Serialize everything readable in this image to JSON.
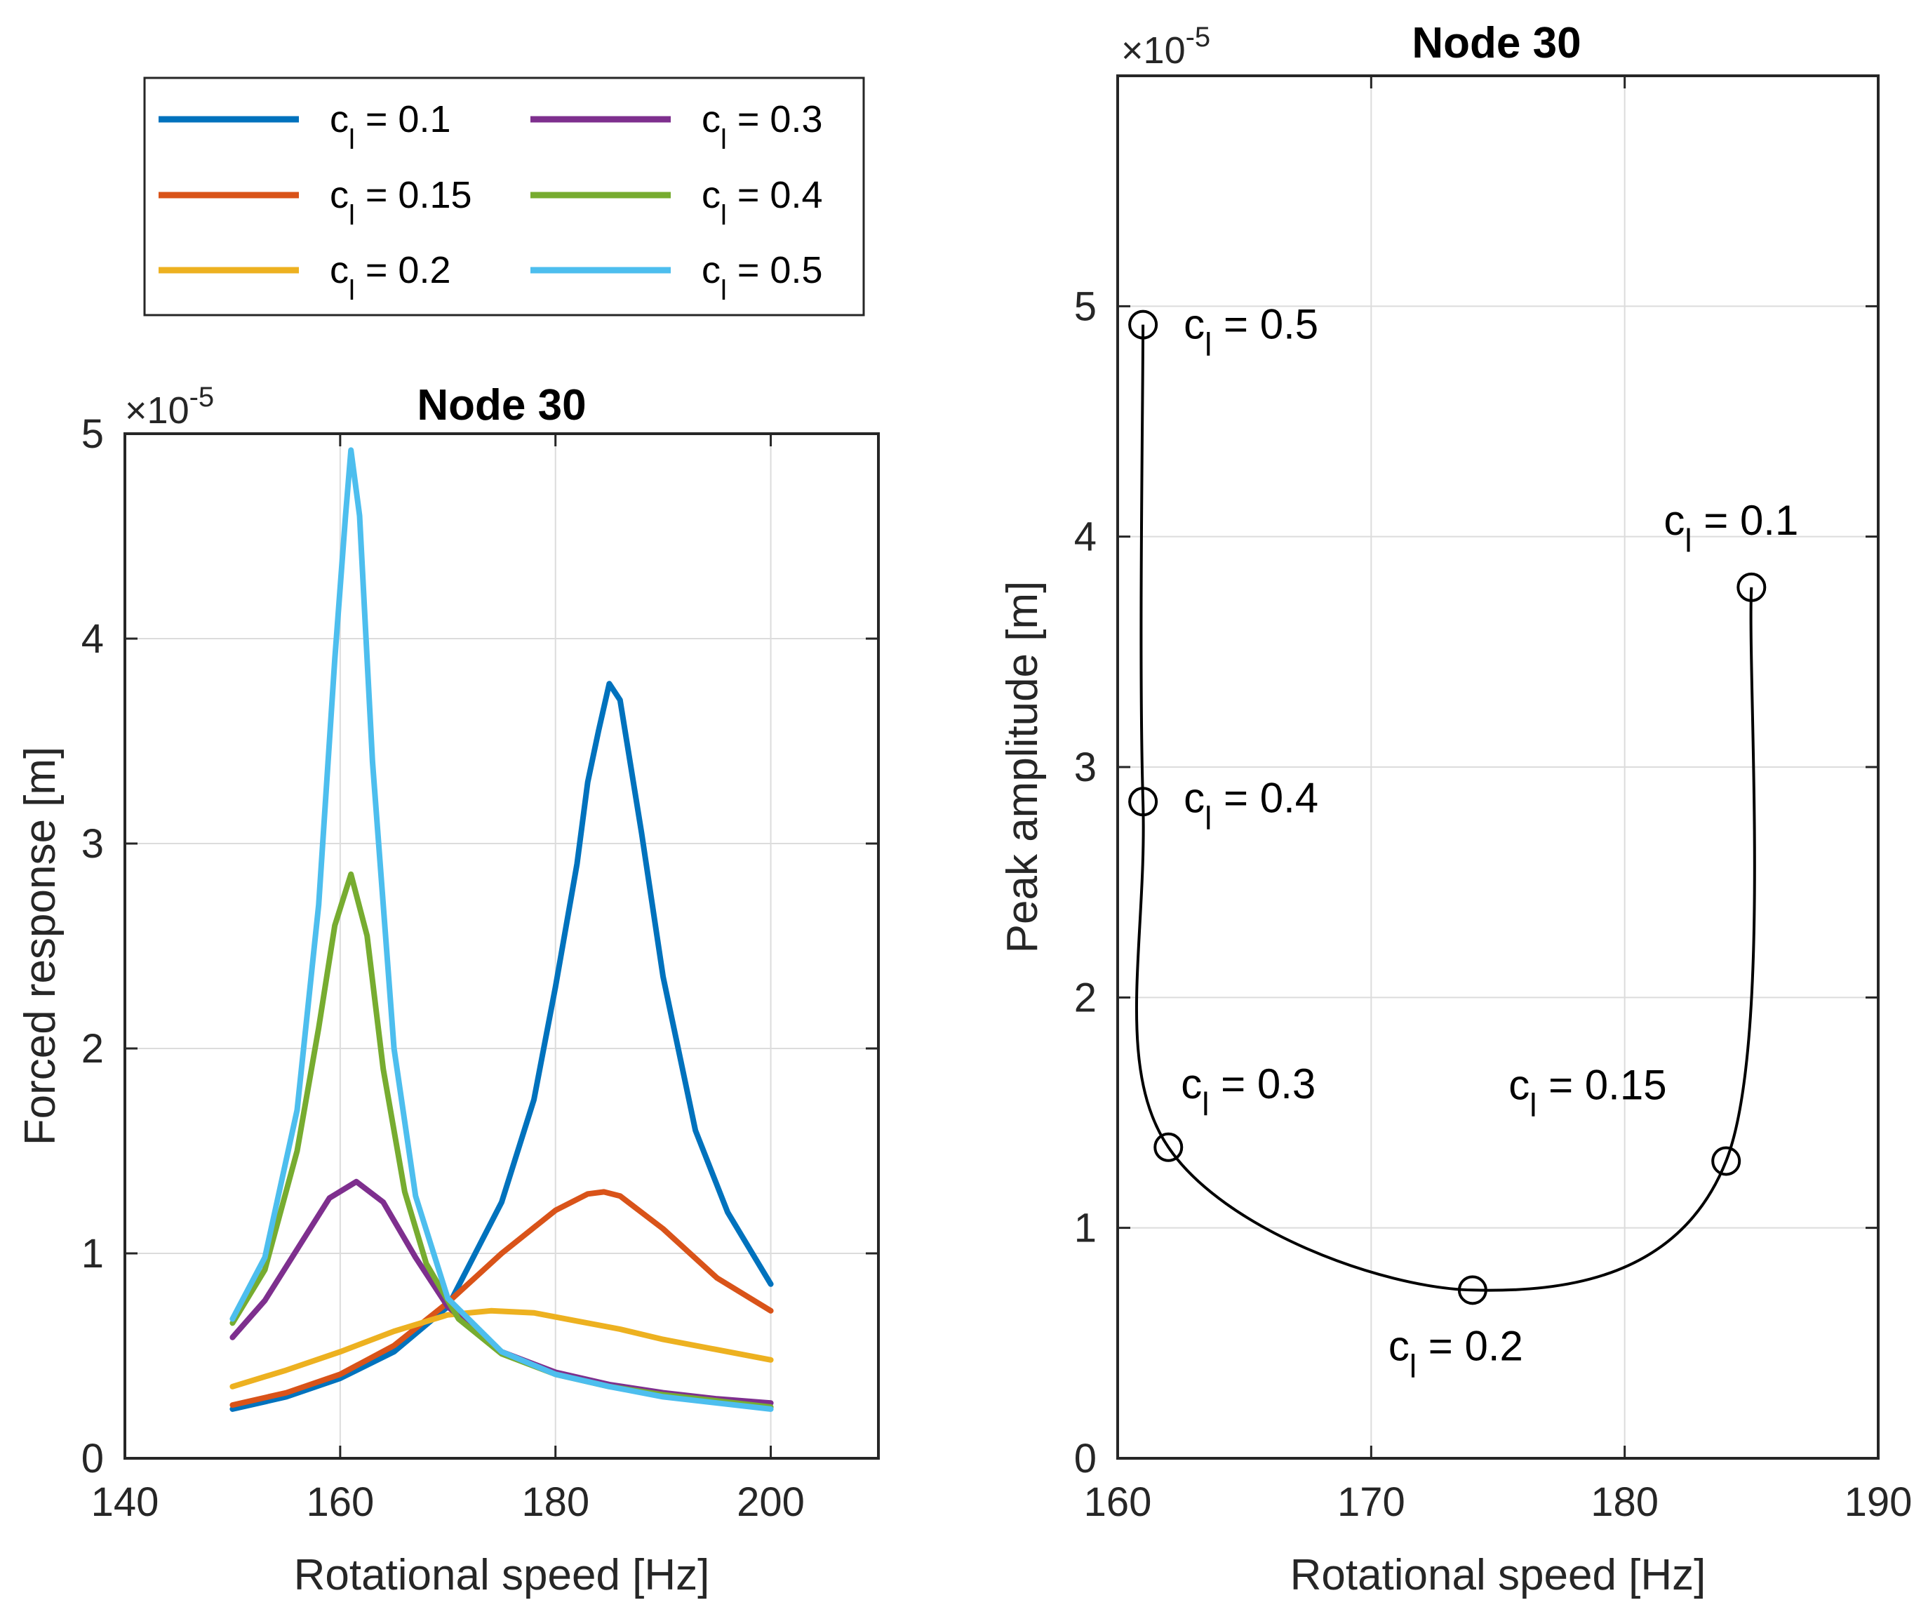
{
  "chart_data": [
    {
      "type": "line",
      "title": "Node 30",
      "xlabel": "Rotational speed [Hz]",
      "ylabel": "Forced response [m]",
      "exponent_label": "×10",
      "exponent_power": "-5",
      "xlim": [
        140,
        210
      ],
      "ylim": [
        0,
        5
      ],
      "xticks": [
        "140",
        "160",
        "180",
        "200"
      ],
      "yticks": [
        "0",
        "1",
        "2",
        "3",
        "4",
        "5"
      ],
      "grid": true,
      "legend_position": "top-left-outside",
      "series": [
        {
          "name": "c",
          "sub": "l",
          "rest": " = 0.1",
          "color": "#0072BD",
          "x": [
            150,
            155,
            160,
            165,
            170,
            175,
            178,
            180,
            182,
            183,
            184,
            185,
            186,
            188,
            190,
            193,
            196,
            200
          ],
          "y": [
            0.24,
            0.3,
            0.39,
            0.52,
            0.74,
            1.25,
            1.75,
            2.3,
            2.9,
            3.3,
            3.55,
            3.78,
            3.7,
            3.05,
            2.35,
            1.6,
            1.2,
            0.85
          ]
        },
        {
          "name": "c",
          "sub": "l",
          "rest": " = 0.15",
          "color": "#D95319",
          "x": [
            150,
            155,
            160,
            165,
            170,
            175,
            180,
            183,
            184.5,
            186,
            190,
            195,
            200
          ],
          "y": [
            0.26,
            0.32,
            0.41,
            0.55,
            0.76,
            1.0,
            1.21,
            1.29,
            1.3,
            1.28,
            1.12,
            0.88,
            0.72
          ]
        },
        {
          "name": "c",
          "sub": "l",
          "rest": " = 0.2",
          "color": "#EDB120",
          "x": [
            150,
            155,
            160,
            165,
            170,
            174,
            178,
            182,
            186,
            190,
            195,
            200
          ],
          "y": [
            0.35,
            0.43,
            0.52,
            0.62,
            0.7,
            0.72,
            0.71,
            0.67,
            0.63,
            0.58,
            0.53,
            0.48
          ]
        },
        {
          "name": "c",
          "sub": "l",
          "rest": " = 0.3",
          "color": "#7E2F8E",
          "x": [
            150,
            153,
            156,
            159,
            161.5,
            164,
            167,
            170,
            175,
            180,
            185,
            190,
            195,
            200
          ],
          "y": [
            0.59,
            0.77,
            1.02,
            1.27,
            1.35,
            1.25,
            0.98,
            0.74,
            0.52,
            0.42,
            0.36,
            0.32,
            0.29,
            0.27
          ]
        },
        {
          "name": "c",
          "sub": "l",
          "rest": " = 0.4",
          "color": "#77AC30",
          "x": [
            150,
            153,
            156,
            158,
            159.5,
            161,
            162.5,
            164,
            166,
            168,
            171,
            175,
            180,
            185,
            190,
            195,
            200
          ],
          "y": [
            0.66,
            0.92,
            1.5,
            2.1,
            2.6,
            2.85,
            2.55,
            1.9,
            1.3,
            0.95,
            0.68,
            0.51,
            0.41,
            0.35,
            0.31,
            0.28,
            0.25
          ]
        },
        {
          "name": "c",
          "sub": "l",
          "rest": " = 0.5",
          "color": "#4DBEEE",
          "x": [
            150,
            153,
            156,
            158,
            159.5,
            160.5,
            161,
            161.8,
            163,
            165,
            167,
            170,
            175,
            180,
            185,
            190,
            195,
            200
          ],
          "y": [
            0.68,
            0.98,
            1.7,
            2.7,
            3.9,
            4.6,
            4.92,
            4.6,
            3.4,
            2.0,
            1.28,
            0.78,
            0.52,
            0.41,
            0.35,
            0.3,
            0.27,
            0.24
          ]
        }
      ]
    },
    {
      "type": "line",
      "title": "Node 30",
      "xlabel": "Rotational speed [Hz]",
      "ylabel": "Peak amplitude [m]",
      "exponent_label": "×10",
      "exponent_power": "-5",
      "xlim": [
        160,
        190
      ],
      "ylim": [
        0,
        6
      ],
      "xticks": [
        "160",
        "170",
        "180",
        "190"
      ],
      "yticks": [
        "0",
        "1",
        "2",
        "3",
        "4",
        "5"
      ],
      "grid": true,
      "points": [
        {
          "x": 185.0,
          "y": 3.78,
          "label_c": "c",
          "label_sub": "l",
          "label_rest": " = 0.1"
        },
        {
          "x": 184.0,
          "y": 1.29,
          "label_c": "c",
          "label_sub": "l",
          "label_rest": " = 0.15"
        },
        {
          "x": 174.0,
          "y": 0.73,
          "label_c": "c",
          "label_sub": "l",
          "label_rest": " = 0.2"
        },
        {
          "x": 162.0,
          "y": 1.35,
          "label_c": "c",
          "label_sub": "l",
          "label_rest": " = 0.3"
        },
        {
          "x": 161.0,
          "y": 2.85,
          "label_c": "c",
          "label_sub": "l",
          "label_rest": " = 0.4"
        },
        {
          "x": 161.0,
          "y": 4.92,
          "label_c": "c",
          "label_sub": "l",
          "label_rest": " = 0.5"
        }
      ]
    }
  ]
}
